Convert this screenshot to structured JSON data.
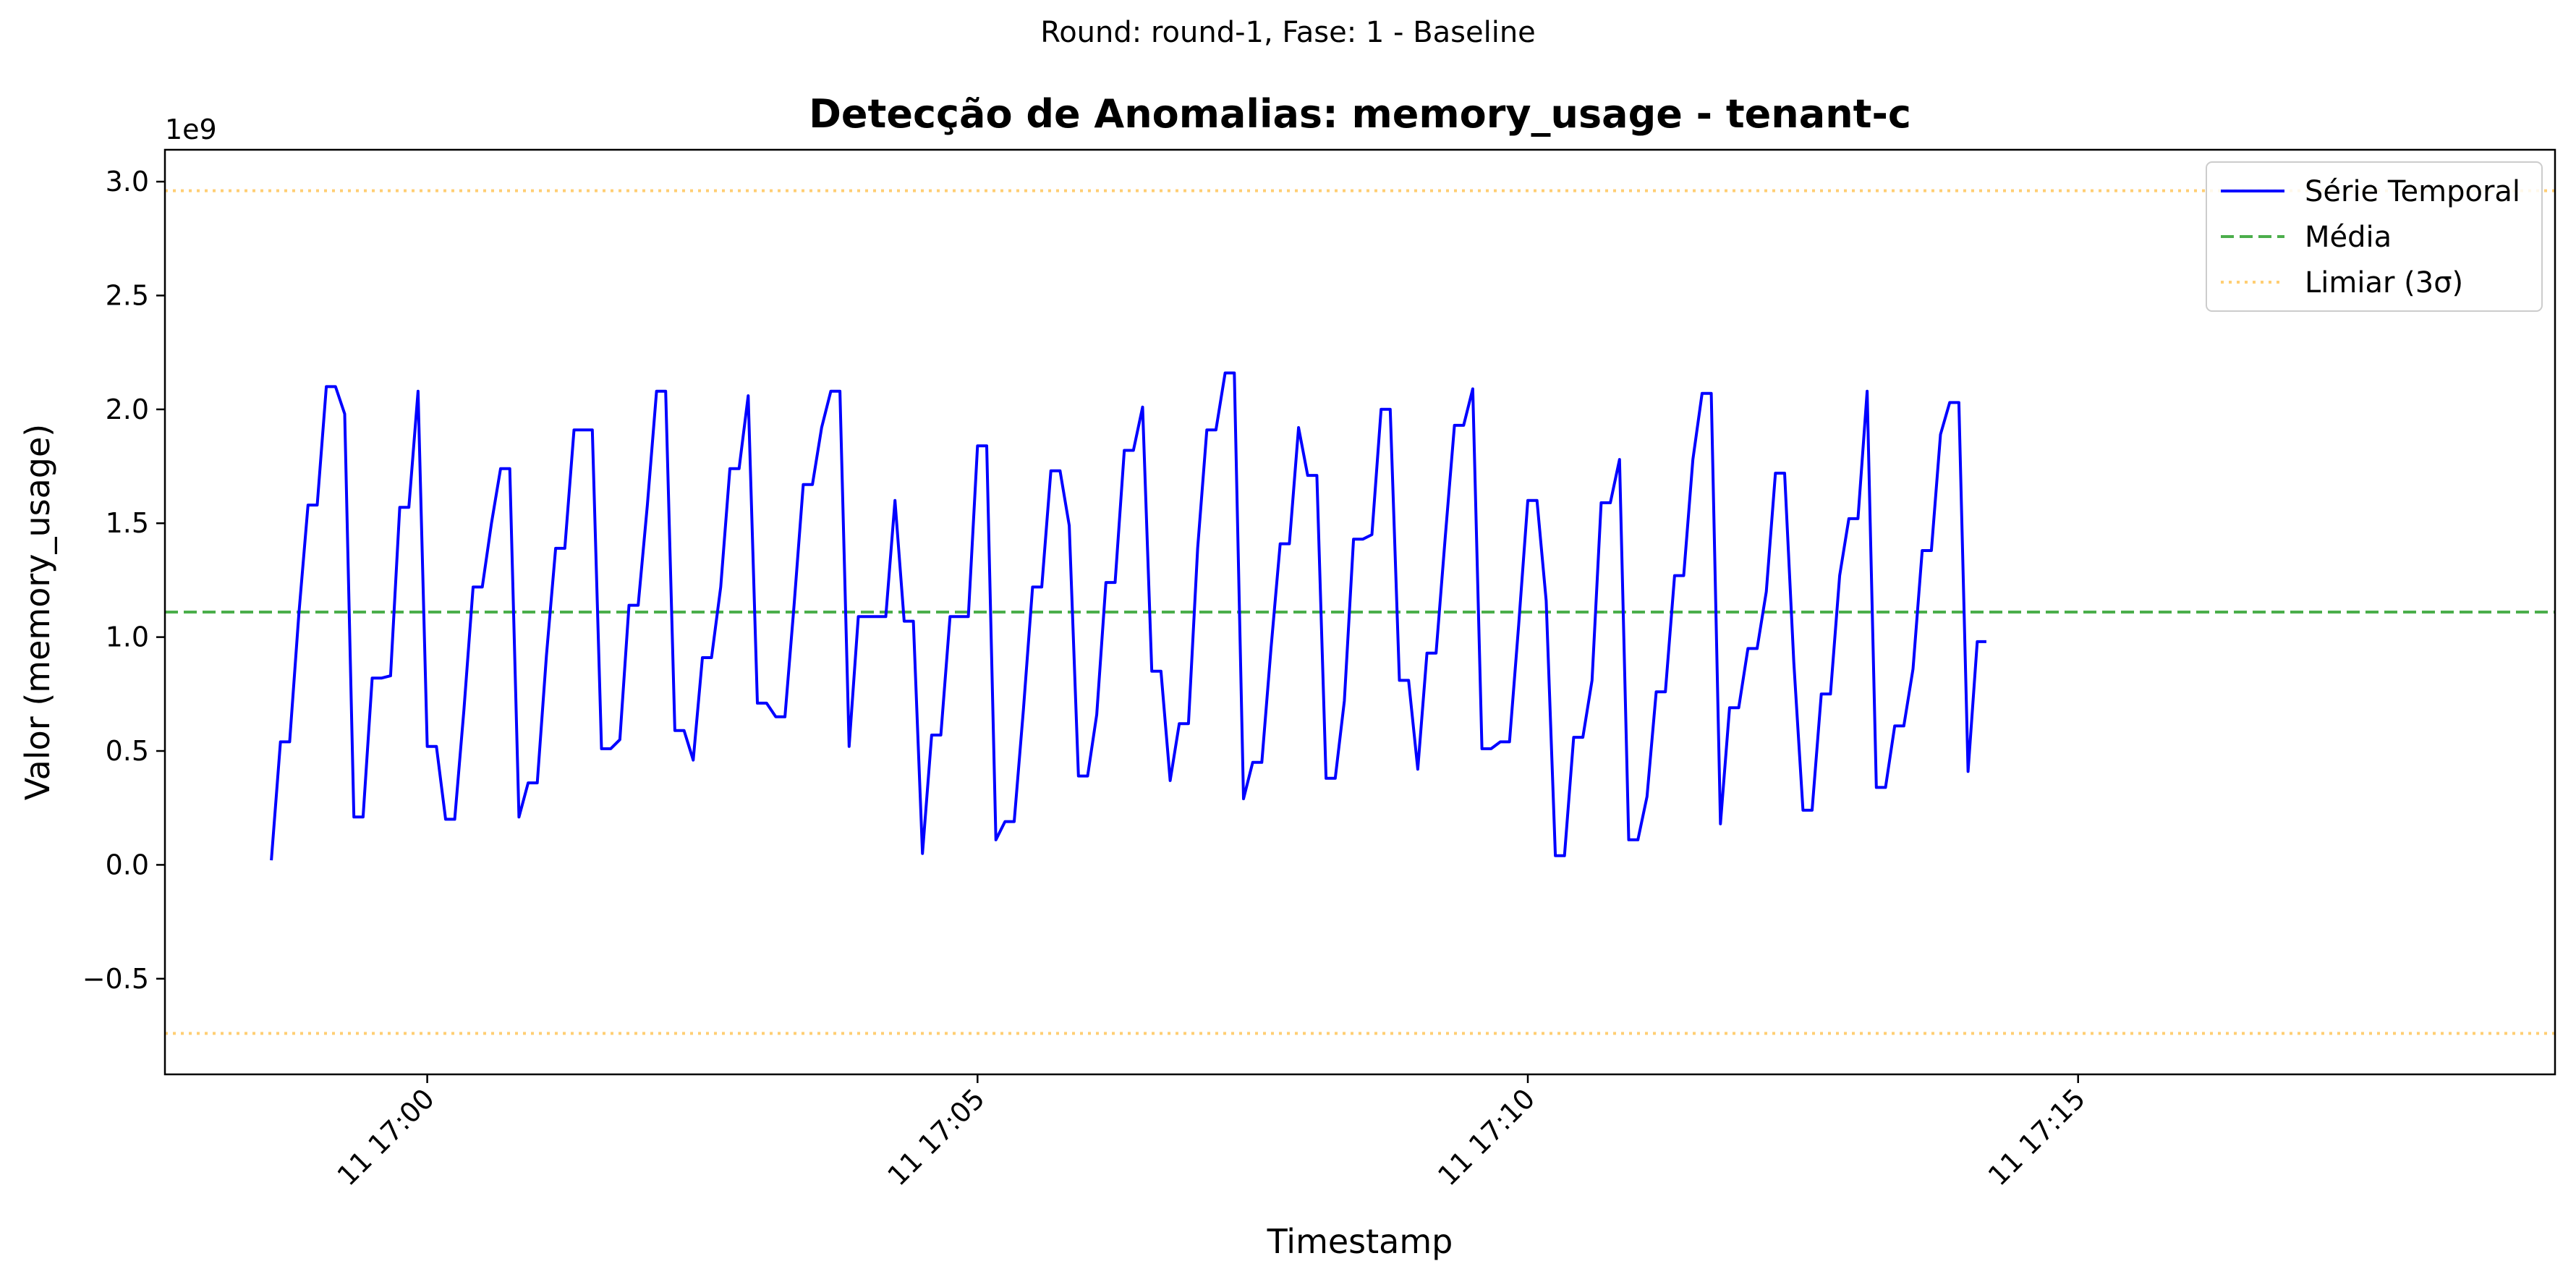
{
  "figure": {
    "suptitle": "Round: round-1, Fase: 1 - Baseline"
  },
  "chart_data": {
    "type": "line",
    "title": "Detecção de Anomalias: memory_usage - tenant-c",
    "xlabel": "Timestamp",
    "ylabel": "Valor (memory_usage)",
    "y_offset_label": "1e9",
    "y_scale_multiplier": 1000000000,
    "xlim": [
      "2024-01-11T16:57:37",
      "2024-01-11T17:19:20"
    ],
    "ylim": [
      -0.92,
      3.14
    ],
    "x_ticks": [
      {
        "label": "11 17:00",
        "time": "2024-01-11T17:00:00"
      },
      {
        "label": "11 17:05",
        "time": "2024-01-11T17:05:00"
      },
      {
        "label": "11 17:10",
        "time": "2024-01-11T17:10:00"
      },
      {
        "label": "11 17:15",
        "time": "2024-01-11T17:15:00"
      }
    ],
    "y_ticks": [
      {
        "label": "−0.5",
        "value": -0.5
      },
      {
        "label": "0.0",
        "value": 0.0
      },
      {
        "label": "0.5",
        "value": 0.5
      },
      {
        "label": "1.0",
        "value": 1.0
      },
      {
        "label": "1.5",
        "value": 1.5
      },
      {
        "label": "2.0",
        "value": 2.0
      },
      {
        "label": "2.5",
        "value": 2.5
      },
      {
        "label": "3.0",
        "value": 3.0
      }
    ],
    "grid": false,
    "legend_position": "top-right",
    "x_start": "2024-01-11T16:58:35",
    "x_step_seconds": 5,
    "series": [
      {
        "name": "Série Temporal",
        "style": "solid",
        "color": "#0000ff",
        "values": [
          0.02,
          0.54,
          0.54,
          1.1,
          1.58,
          1.58,
          2.1,
          2.1,
          1.98,
          0.21,
          0.21,
          0.82,
          0.82,
          0.83,
          1.57,
          1.57,
          2.08,
          0.52,
          0.52,
          0.2,
          0.2,
          0.68,
          1.22,
          1.22,
          1.5,
          1.74,
          1.74,
          0.21,
          0.36,
          0.36,
          0.92,
          1.39,
          1.39,
          1.91,
          1.91,
          1.91,
          0.51,
          0.51,
          0.55,
          1.14,
          1.14,
          1.58,
          2.08,
          2.08,
          0.59,
          0.59,
          0.46,
          0.91,
          0.91,
          1.22,
          1.74,
          1.74,
          2.06,
          0.71,
          0.71,
          0.65,
          0.65,
          1.14,
          1.67,
          1.67,
          1.92,
          2.08,
          2.08,
          0.52,
          1.09,
          1.09,
          1.09,
          1.09,
          1.6,
          1.07,
          1.07,
          0.05,
          0.57,
          0.57,
          1.09,
          1.09,
          1.09,
          1.84,
          1.84,
          0.11,
          0.19,
          0.19,
          0.68,
          1.22,
          1.22,
          1.73,
          1.73,
          1.49,
          0.39,
          0.39,
          0.66,
          1.24,
          1.24,
          1.82,
          1.82,
          2.01,
          0.85,
          0.85,
          0.37,
          0.62,
          0.62,
          1.39,
          1.91,
          1.91,
          2.16,
          2.16,
          0.29,
          0.45,
          0.45,
          0.95,
          1.41,
          1.41,
          1.92,
          1.71,
          1.71,
          0.38,
          0.38,
          0.72,
          1.43,
          1.43,
          1.45,
          2.0,
          2.0,
          0.81,
          0.81,
          0.42,
          0.93,
          0.93,
          1.44,
          1.93,
          1.93,
          2.09,
          0.51,
          0.51,
          0.54,
          0.54,
          1.05,
          1.6,
          1.6,
          1.16,
          0.04,
          0.04,
          0.56,
          0.56,
          0.81,
          1.59,
          1.59,
          1.78,
          0.11,
          0.11,
          0.3,
          0.76,
          0.76,
          1.27,
          1.27,
          1.78,
          2.07,
          2.07,
          0.18,
          0.69,
          0.69,
          0.95,
          0.95,
          1.2,
          1.72,
          1.72,
          0.89,
          0.24,
          0.24,
          0.75,
          0.75,
          1.27,
          1.52,
          1.52,
          2.08,
          0.34,
          0.34,
          0.61,
          0.61,
          0.86,
          1.38,
          1.38,
          1.89,
          2.03,
          2.03,
          0.41,
          0.98,
          0.98
        ]
      },
      {
        "name": "Média",
        "style": "dashed",
        "color": "#2ca02c",
        "value": 1.11
      },
      {
        "name": "Limiar (3σ)",
        "style": "dotted",
        "color": "#ffa500",
        "values_upper_lower": [
          2.96,
          -0.74
        ]
      }
    ]
  }
}
